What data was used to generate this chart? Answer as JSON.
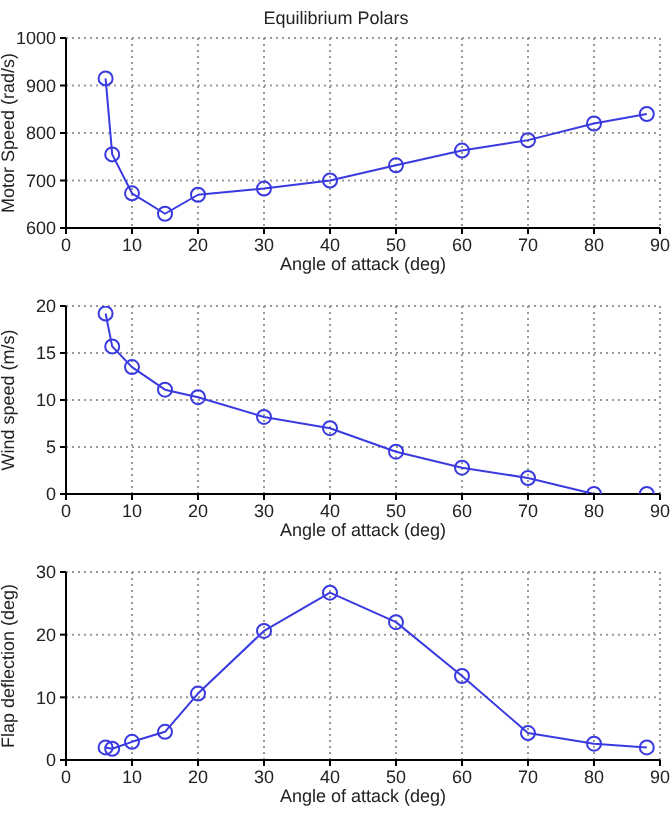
{
  "chart_data": [
    {
      "type": "line",
      "title": "Equilibrium Polars",
      "xlabel": "Angle of attack (deg)",
      "ylabel": "Motor Speed (rad/s)",
      "x": [
        6,
        7,
        10,
        15,
        20,
        30,
        40,
        50,
        60,
        70,
        80,
        88
      ],
      "series": [
        {
          "color": "#3a3ae0",
          "values": [
            915,
            755,
            673,
            630,
            670,
            683,
            700,
            732,
            763,
            785,
            820,
            840
          ]
        }
      ],
      "xlim": [
        0,
        90
      ],
      "xticks": [
        0,
        10,
        20,
        30,
        40,
        50,
        60,
        70,
        80,
        90
      ],
      "ylim": [
        600,
        1000
      ],
      "yticks": [
        600,
        700,
        800,
        900,
        1000
      ],
      "grid": true,
      "marker": "circle",
      "line_style": "solid"
    },
    {
      "type": "line",
      "xlabel": "Angle of attack (deg)",
      "ylabel": "Wind speed (m/s)",
      "x": [
        6,
        7,
        10,
        15,
        20,
        30,
        40,
        50,
        60,
        70,
        80,
        88
      ],
      "series": [
        {
          "color": "#3a3ae0",
          "values": [
            19.2,
            15.7,
            13.5,
            11.1,
            10.3,
            8.2,
            7.0,
            4.5,
            2.8,
            1.7,
            0,
            0
          ]
        }
      ],
      "xlim": [
        0,
        90
      ],
      "xticks": [
        0,
        10,
        20,
        30,
        40,
        50,
        60,
        70,
        80,
        90
      ],
      "ylim": [
        0,
        20
      ],
      "yticks": [
        0,
        5,
        10,
        15,
        20
      ],
      "grid": true,
      "marker": "circle",
      "line_style": "solid"
    },
    {
      "type": "line",
      "xlabel": "Angle of attack (deg)",
      "ylabel": "Flap deflection (deg)",
      "x": [
        6,
        7,
        10,
        15,
        20,
        30,
        40,
        50,
        60,
        70,
        80,
        88
      ],
      "series": [
        {
          "color": "#3a3ae0",
          "values": [
            2.0,
            1.8,
            2.9,
            4.5,
            10.6,
            20.6,
            26.7,
            22.0,
            13.4,
            4.3,
            2.6,
            2.0
          ]
        }
      ],
      "xlim": [
        0,
        90
      ],
      "xticks": [
        0,
        10,
        20,
        30,
        40,
        50,
        60,
        70,
        80,
        90
      ],
      "ylim": [
        0,
        30
      ],
      "yticks": [
        0,
        10,
        20,
        30
      ],
      "grid": true,
      "marker": "circle",
      "line_style": "solid"
    }
  ]
}
